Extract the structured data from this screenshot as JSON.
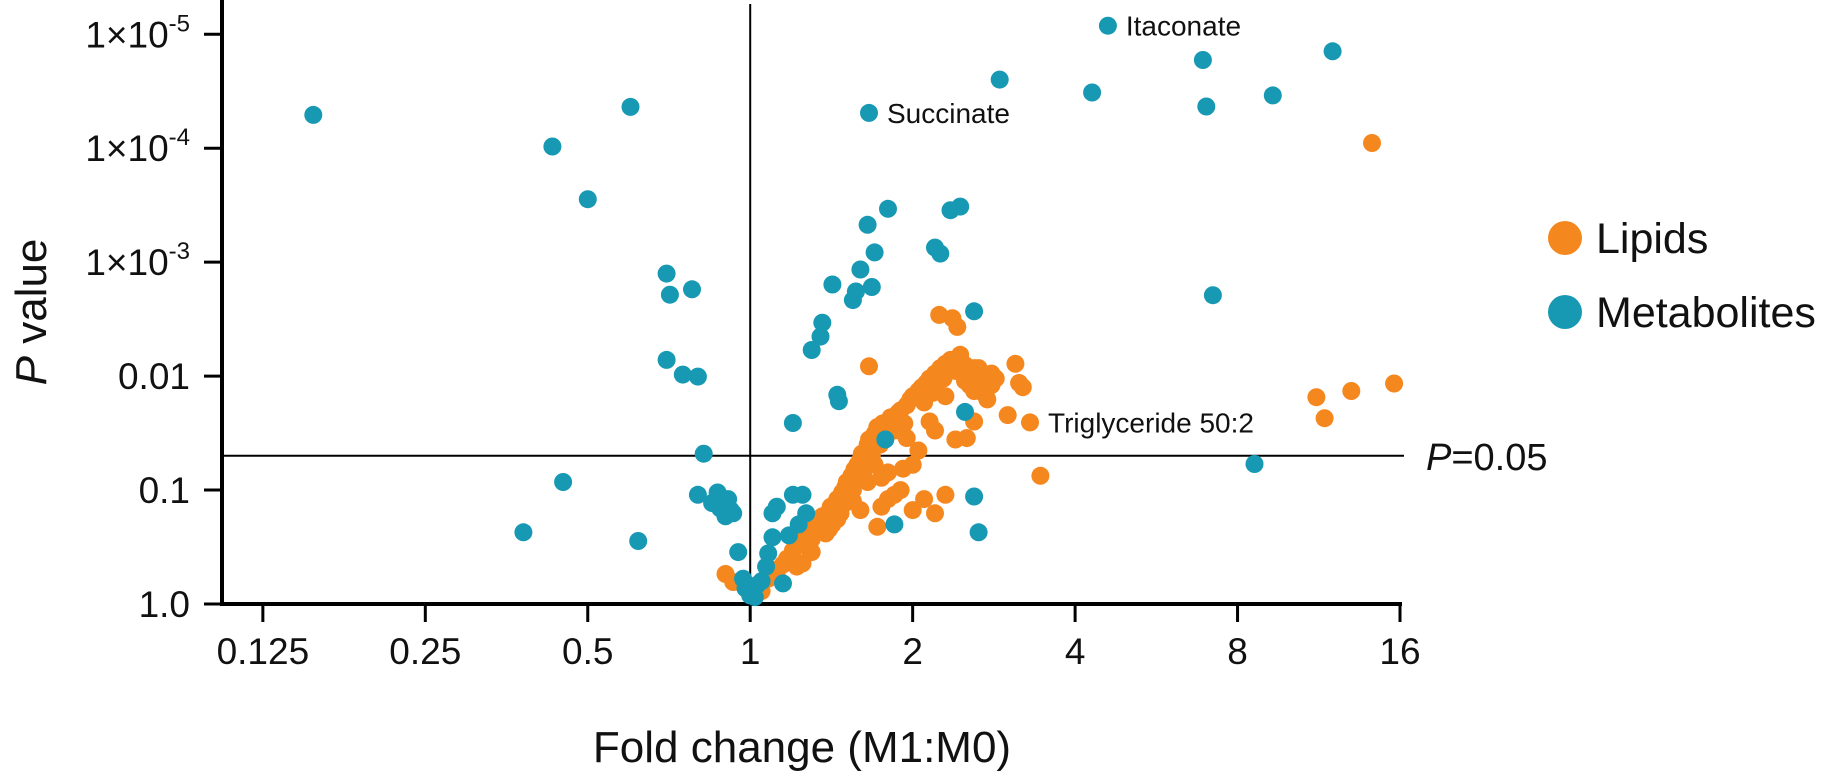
{
  "chart_data": {
    "type": "scatter",
    "xlabel": "Fold change (M1:M0)",
    "ylabel_prefix": "P",
    "ylabel_rest": " value",
    "x_scale": "log2",
    "y_scale": "log10-reversed",
    "xlim": [
      0.105,
      16
    ],
    "ylim": [
      1.0,
      5e-06
    ],
    "x_ticks": [
      {
        "value": 0.125,
        "label": "0.125"
      },
      {
        "value": 0.25,
        "label": "0.25"
      },
      {
        "value": 0.5,
        "label": "0.5"
      },
      {
        "value": 1,
        "label": "1"
      },
      {
        "value": 2,
        "label": "2"
      },
      {
        "value": 4,
        "label": "4"
      },
      {
        "value": 8,
        "label": "8"
      },
      {
        "value": 16,
        "label": "16"
      }
    ],
    "y_ticks": [
      {
        "value": 1.0,
        "label": "1.0"
      },
      {
        "value": 0.1,
        "label": "0.1"
      },
      {
        "value": 0.01,
        "label": "0.01"
      },
      {
        "value": 0.001,
        "label_base": "1×10",
        "label_exp": "-3"
      },
      {
        "value": 0.0001,
        "label_base": "1×10",
        "label_exp": "-4"
      },
      {
        "value": 1e-05,
        "label_base": "1×10",
        "label_exp": "-5"
      }
    ],
    "reference_lines": {
      "vertical_x": 1,
      "horizontal_y": 0.05,
      "horizontal_label_italic": "P",
      "horizontal_label_rest": "=0.05"
    },
    "legend_position": "right",
    "grid": false,
    "series": [
      {
        "name": "Lipids",
        "color": "#f5871f",
        "points": [
          [
            0.9,
            0.545
          ],
          [
            0.93,
            0.641
          ],
          [
            0.96,
            0.652
          ],
          [
            1.0,
            0.752
          ],
          [
            1.05,
            0.77
          ],
          [
            1.08,
            0.6
          ],
          [
            1.1,
            0.5
          ],
          [
            1.12,
            0.56
          ],
          [
            1.15,
            0.45
          ],
          [
            1.17,
            0.4
          ],
          [
            1.2,
            0.34
          ],
          [
            1.22,
            0.47
          ],
          [
            1.23,
            0.3
          ],
          [
            1.25,
            0.28
          ],
          [
            1.27,
            0.24
          ],
          [
            1.28,
            0.32
          ],
          [
            1.3,
            0.26
          ],
          [
            1.32,
            0.21
          ],
          [
            1.33,
            0.23
          ],
          [
            1.35,
            0.19
          ],
          [
            1.36,
            0.17
          ],
          [
            1.38,
            0.18
          ],
          [
            1.4,
            0.155
          ],
          [
            1.41,
            0.14
          ],
          [
            1.42,
            0.2
          ],
          [
            1.44,
            0.13
          ],
          [
            1.45,
            0.12
          ],
          [
            1.46,
            0.14
          ],
          [
            1.48,
            0.105
          ],
          [
            1.5,
            0.095
          ],
          [
            1.51,
            0.085
          ],
          [
            1.52,
            0.11
          ],
          [
            1.54,
            0.075
          ],
          [
            1.55,
            0.09
          ],
          [
            1.56,
            0.066
          ],
          [
            1.58,
            0.06
          ],
          [
            1.6,
            0.054
          ],
          [
            1.61,
            0.048
          ],
          [
            1.62,
            0.07
          ],
          [
            1.65,
            0.04
          ],
          [
            1.66,
            0.036
          ],
          [
            1.68,
            0.05
          ],
          [
            1.7,
            0.032
          ],
          [
            1.72,
            0.028
          ],
          [
            1.74,
            0.04
          ],
          [
            1.76,
            0.026
          ],
          [
            1.8,
            0.025
          ],
          [
            1.82,
            0.023
          ],
          [
            1.85,
            0.03
          ],
          [
            1.88,
            0.021
          ],
          [
            1.9,
            0.02
          ],
          [
            1.93,
            0.026
          ],
          [
            1.95,
            0.018
          ],
          [
            1.98,
            0.016
          ],
          [
            2.0,
            0.015
          ],
          [
            2.05,
            0.0135
          ],
          [
            2.08,
            0.0125
          ],
          [
            2.1,
            0.017
          ],
          [
            2.12,
            0.0115
          ],
          [
            2.15,
            0.0105
          ],
          [
            2.18,
            0.014
          ],
          [
            2.2,
            0.0095
          ],
          [
            2.25,
            0.0085
          ],
          [
            2.28,
            0.0105
          ],
          [
            2.3,
            0.0078
          ],
          [
            2.35,
            0.0072
          ],
          [
            2.4,
            0.009
          ],
          [
            2.45,
            0.0065
          ],
          [
            2.5,
            0.008
          ],
          [
            2.55,
            0.012
          ],
          [
            2.6,
            0.0085
          ],
          [
            2.65,
            0.011
          ],
          [
            2.7,
            0.014
          ],
          [
            2.75,
            0.016
          ],
          [
            2.8,
            0.012
          ],
          [
            2.85,
            0.0105
          ],
          [
            3.0,
            0.022
          ],
          [
            3.1,
            0.0078
          ],
          [
            3.15,
            0.0115
          ],
          [
            1.55,
            0.125
          ],
          [
            1.65,
            0.085
          ],
          [
            1.75,
            0.14
          ],
          [
            1.85,
            0.11
          ],
          [
            1.92,
            0.065
          ],
          [
            2.0,
            0.15
          ],
          [
            2.1,
            0.12
          ],
          [
            2.2,
            0.16
          ],
          [
            2.3,
            0.11
          ],
          [
            1.45,
            0.18
          ],
          [
            1.6,
            0.08
          ],
          [
            1.72,
            0.21
          ],
          [
            1.8,
            0.07
          ],
          [
            1.9,
            0.1
          ],
          [
            2.05,
            0.045
          ],
          [
            2.2,
            0.03
          ],
          [
            2.4,
            0.036
          ],
          [
            2.52,
            0.035
          ],
          [
            2.6,
            0.025
          ],
          [
            1.38,
            0.24
          ],
          [
            1.47,
            0.16
          ],
          [
            1.25,
            0.44
          ],
          [
            1.3,
            0.35
          ],
          [
            1.4,
            0.22
          ],
          [
            1.5,
            0.13
          ],
          [
            1.3,
            0.27
          ],
          [
            1.6,
            0.15
          ],
          [
            1.7,
            0.06
          ],
          [
            1.8,
            0.12
          ],
          [
            2.0,
            0.06
          ],
          [
            2.2,
            0.013
          ],
          [
            2.3,
            0.015
          ],
          [
            2.5,
            0.011
          ],
          [
            2.6,
            0.0135
          ],
          [
            2.8,
            0.0095
          ],
          [
            1.55,
            0.1
          ],
          [
            1.75,
            0.078
          ],
          [
            1.95,
            0.035
          ],
          [
            2.15,
            0.025
          ],
          [
            1.66,
            0.0082
          ],
          [
            2.24,
            0.0029
          ],
          [
            2.37,
            0.0031
          ],
          [
            2.42,
            0.0037
          ],
          [
            2.65,
            0.0085
          ],
          [
            2.75,
            0.0105
          ],
          [
            3.2,
            0.0125
          ],
          [
            3.3,
            0.0255
          ],
          [
            3.45,
            0.075
          ],
          [
            11.2,
            0.0153
          ],
          [
            11.6,
            0.0234
          ],
          [
            13.0,
            0.0135
          ],
          [
            14.2,
            9e-05
          ],
          [
            15.6,
            0.0116
          ]
        ]
      },
      {
        "name": "Metabolites",
        "color": "#1799b3",
        "points": [
          [
            0.155,
            5.1e-05
          ],
          [
            0.38,
            0.235
          ],
          [
            0.45,
            0.085
          ],
          [
            0.43,
            9.65e-05
          ],
          [
            0.5,
            0.00028
          ],
          [
            0.6,
            4.34e-05
          ],
          [
            0.62,
            0.28
          ],
          [
            0.7,
            0.00126
          ],
          [
            0.71,
            0.00193
          ],
          [
            0.7,
            0.0072
          ],
          [
            0.75,
            0.0097
          ],
          [
            0.78,
            0.00173
          ],
          [
            0.8,
            0.0101
          ],
          [
            0.82,
            0.048
          ],
          [
            0.8,
            0.11
          ],
          [
            0.85,
            0.13
          ],
          [
            0.87,
            0.105
          ],
          [
            0.88,
            0.145
          ],
          [
            0.9,
            0.17
          ],
          [
            0.91,
            0.12
          ],
          [
            0.92,
            0.15
          ],
          [
            0.93,
            0.16
          ],
          [
            0.95,
            0.35
          ],
          [
            0.97,
            0.6
          ],
          [
            0.98,
            0.73
          ],
          [
            1.0,
            0.84
          ],
          [
            1.02,
            0.87
          ],
          [
            1.03,
            0.68
          ],
          [
            1.05,
            0.63
          ],
          [
            1.07,
            0.47
          ],
          [
            1.08,
            0.36
          ],
          [
            1.1,
            0.26
          ],
          [
            1.1,
            0.16
          ],
          [
            1.12,
            0.14
          ],
          [
            1.15,
            0.66
          ],
          [
            1.18,
            0.25
          ],
          [
            1.2,
            0.11
          ],
          [
            1.25,
            0.11
          ],
          [
            1.23,
            0.2
          ],
          [
            1.27,
            0.16
          ],
          [
            1.2,
            0.0258
          ],
          [
            1.3,
            0.0059
          ],
          [
            1.36,
            0.0034
          ],
          [
            1.35,
            0.0045
          ],
          [
            1.42,
            0.00157
          ],
          [
            1.45,
            0.0146
          ],
          [
            1.46,
            0.0166
          ],
          [
            1.55,
            0.00215
          ],
          [
            1.57,
            0.00181
          ],
          [
            1.6,
            0.00116
          ],
          [
            1.65,
            0.00047
          ],
          [
            1.68,
            0.00165
          ],
          [
            1.7,
            0.00082
          ],
          [
            1.66,
            4.9e-05
          ],
          [
            1.8,
            0.00034
          ],
          [
            1.78,
            0.036
          ],
          [
            1.85,
            0.2
          ],
          [
            2.2,
            0.000745
          ],
          [
            2.25,
            0.00084
          ],
          [
            2.35,
            0.00035
          ],
          [
            2.45,
            0.000325
          ],
          [
            2.5,
            0.0206
          ],
          [
            2.6,
            0.0027
          ],
          [
            2.6,
            0.114
          ],
          [
            2.65,
            0.235
          ],
          [
            2.9,
            2.5e-05
          ],
          [
            4.3,
            3.24e-05
          ],
          [
            4.6,
            8.4e-06
          ],
          [
            6.9,
            1.68e-05
          ],
          [
            7.0,
            4.3e-05
          ],
          [
            7.2,
            0.00195
          ],
          [
            9.3,
            3.44e-05
          ],
          [
            12.0,
            1.41e-05
          ],
          [
            8.6,
            0.059
          ]
        ]
      }
    ],
    "annotations": [
      {
        "text": "Itaconate",
        "x": 4.6,
        "y": 8.4e-06
      },
      {
        "text": "Succinate",
        "x": 1.66,
        "y": 4.9e-05
      },
      {
        "text": "Triglyceride 50:2",
        "x": 3.3,
        "y": 0.0255
      }
    ]
  }
}
